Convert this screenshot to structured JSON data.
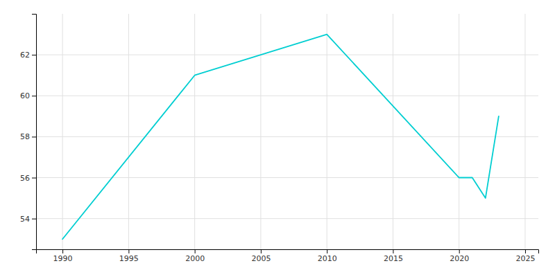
{
  "chart_data": {
    "type": "line",
    "x": [
      1990,
      2000,
      2010,
      2020,
      2021,
      2022,
      2023
    ],
    "values": [
      53,
      61,
      63,
      56,
      56,
      55,
      59
    ],
    "color": "#00CED1",
    "xlim": [
      1988,
      2026
    ],
    "ylim": [
      52.5,
      64
    ],
    "xticks": [
      1990,
      1995,
      2000,
      2005,
      2010,
      2015,
      2020,
      2025
    ],
    "yticks": [
      54,
      56,
      58,
      60,
      62
    ],
    "grid": true
  }
}
